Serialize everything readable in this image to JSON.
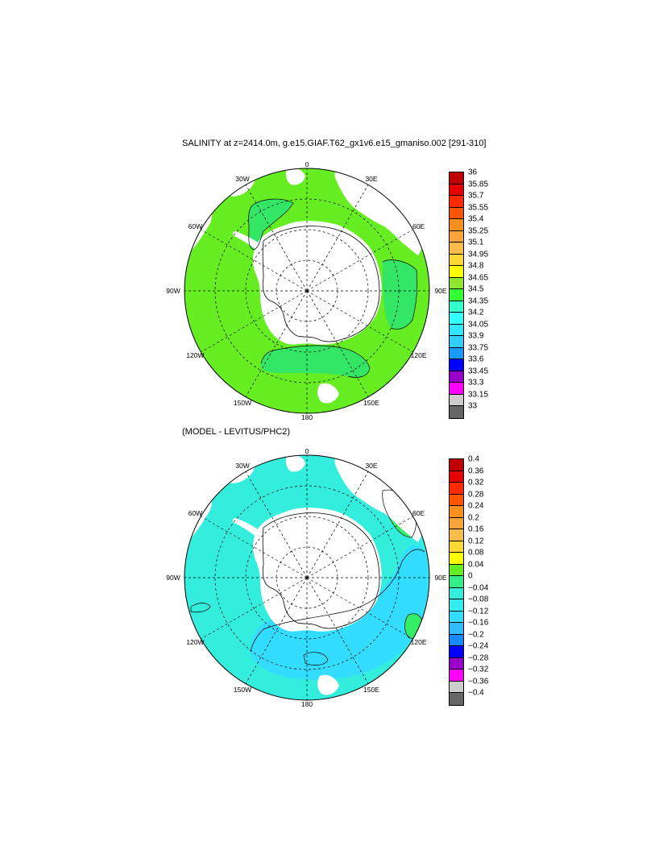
{
  "top_panel": {
    "title": "SALINITY at z=2414.0m, g.e15.GIAF.T62_gx1v6.e15_gmaniso.002 [291-310]",
    "longitude_labels": {
      "0": "0",
      "30E": "30E",
      "60E": "60E",
      "90E": "90E",
      "120E": "120E",
      "150E": "150E",
      "180": "180",
      "150W": "150W",
      "120W": "120W",
      "90W": "90W",
      "60W": "60W",
      "30W": "30W"
    },
    "colorbar": {
      "labels": [
        "36",
        "35.85",
        "35.7",
        "35.55",
        "35.4",
        "35.25",
        "35.1",
        "34.95",
        "34.8",
        "34.65",
        "34.5",
        "34.35",
        "34.2",
        "34.05",
        "33.9",
        "33.75",
        "33.6",
        "33.45",
        "33.3",
        "33.15",
        "33"
      ],
      "colors": [
        "#c00000",
        "#e60000",
        "#ff2a00",
        "#ff5500",
        "#f7901e",
        "#f7a53a",
        "#fbbd4a",
        "#fdd835",
        "#ffff00",
        "#8ee62e",
        "#33ff33",
        "#33ffcc",
        "#33ffff",
        "#33e6ff",
        "#33ccff",
        "#1a9bff",
        "#0000ff",
        "#9900cc",
        "#ff00ff",
        "#cccccc",
        "#666666"
      ]
    },
    "field_color": "#66ee22",
    "anomaly_color": "#33e666"
  },
  "bottom_panel": {
    "title": "(MODEL - LEVITUS/PHC2)",
    "longitude_labels": {
      "0": "0",
      "30E": "30E",
      "60E": "60E",
      "90E": "90E",
      "120E": "120E",
      "150E": "150E",
      "180": "180",
      "150W": "150W",
      "120W": "120W",
      "90W": "90W",
      "60W": "60W",
      "30W": "30W"
    },
    "colorbar": {
      "labels": [
        "0.4",
        "0.36",
        "0.32",
        "0.28",
        "0.24",
        "0.2",
        "0.16",
        "0.12",
        "0.08",
        "0.04",
        "0",
        "−0.04",
        "−0.08",
        "−0.12",
        "−0.16",
        "−0.2",
        "−0.24",
        "−0.28",
        "−0.32",
        "−0.36",
        "−0.4"
      ],
      "colors": [
        "#c00000",
        "#e60000",
        "#ff2a00",
        "#ff5500",
        "#f7901e",
        "#f7a53a",
        "#fbbd4a",
        "#fdd835",
        "#ffff00",
        "#66ee22",
        "#33ee88",
        "#33eedd",
        "#33eeee",
        "#33ddff",
        "#33bbff",
        "#1a88ff",
        "#0000ff",
        "#9900cc",
        "#ff00ff",
        "#cccccc",
        "#666666"
      ]
    },
    "field_color": "#33eedd",
    "secondary_color": "#33ddff",
    "positive_color": "#33ee66"
  },
  "land_color": "#ffffff"
}
